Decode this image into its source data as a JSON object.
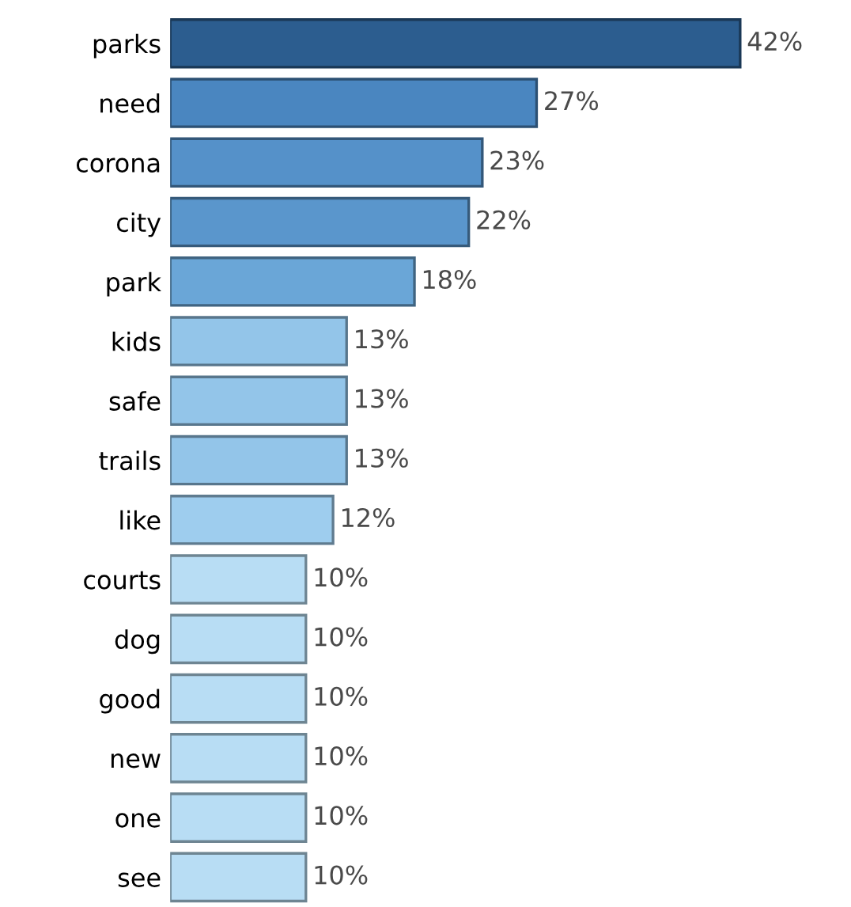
{
  "chart_data": {
    "type": "bar",
    "orientation": "horizontal",
    "categories": [
      "parks",
      "need",
      "corona",
      "city",
      "park",
      "kids",
      "safe",
      "trails",
      "like",
      "courts",
      "dog",
      "good",
      "new",
      "one",
      "see"
    ],
    "values": [
      42,
      27,
      23,
      22,
      18,
      13,
      13,
      13,
      12,
      10,
      10,
      10,
      10,
      10,
      10
    ],
    "value_labels": [
      "42%",
      "27%",
      "23%",
      "22%",
      "18%",
      "13%",
      "13%",
      "13%",
      "12%",
      "10%",
      "10%",
      "10%",
      "10%",
      "10%",
      "10%"
    ],
    "colors": [
      "#2c5d8f",
      "#4a86c0",
      "#5591c9",
      "#5a96cc",
      "#6aa6d7",
      "#93c5e9",
      "#93c5e9",
      "#93c5e9",
      "#9ecdee",
      "#b8ddf4",
      "#b8ddf4",
      "#b8ddf4",
      "#b8ddf4",
      "#b8ddf4",
      "#b8ddf4"
    ],
    "grid": false,
    "legend": false
  }
}
